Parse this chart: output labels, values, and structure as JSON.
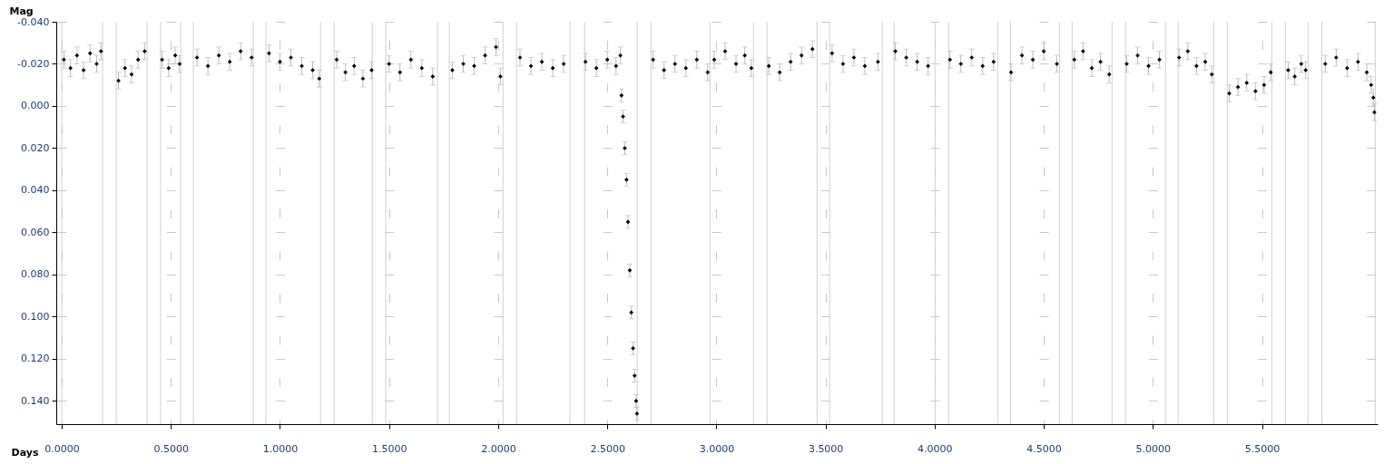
{
  "chart_data": {
    "type": "scatter",
    "xlabel": "Days",
    "ylabel": "Mag",
    "xlim": [
      -0.025,
      6.03
    ],
    "ylim": [
      0.151,
      -0.04
    ],
    "xticks": [
      {
        "value": 0,
        "label": "0.0000"
      },
      {
        "value": 0.5,
        "label": "0.5000"
      },
      {
        "value": 1,
        "label": "1.0000"
      },
      {
        "value": 1.5,
        "label": "1.5000"
      },
      {
        "value": 2,
        "label": "2.0000"
      },
      {
        "value": 2.5,
        "label": "2.5000"
      },
      {
        "value": 3,
        "label": "3.0000"
      },
      {
        "value": 3.5,
        "label": "3.5000"
      },
      {
        "value": 4,
        "label": "4.0000"
      },
      {
        "value": 4.5,
        "label": "4.5000"
      },
      {
        "value": 5,
        "label": "5.0000"
      },
      {
        "value": 5.5,
        "label": "5.5000"
      }
    ],
    "yticks": [
      {
        "value": -0.04,
        "label": "-0.040"
      },
      {
        "value": -0.02,
        "label": "-0.020"
      },
      {
        "value": 0,
        "label": "0.000"
      },
      {
        "value": 0.02,
        "label": "0.020"
      },
      {
        "value": 0.04,
        "label": "0.040"
      },
      {
        "value": 0.06,
        "label": "0.060"
      },
      {
        "value": 0.08,
        "label": "0.080"
      },
      {
        "value": 0.1,
        "label": "0.100"
      },
      {
        "value": 0.12,
        "label": "0.120"
      },
      {
        "value": 0.14,
        "label": "0.140"
      }
    ],
    "grid": true,
    "marker": "diamond",
    "series": [
      {
        "color": "#000000",
        "x": [
          0.01,
          0.04,
          0.07,
          0.1,
          0.13,
          0.16,
          0.18,
          0.26,
          0.29,
          0.32,
          0.35,
          0.38,
          0.46,
          0.49,
          0.52,
          0.54,
          0.62,
          0.67,
          0.72,
          0.77,
          0.82,
          0.87,
          0.95,
          1.0,
          1.05,
          1.1,
          1.15,
          1.18,
          1.26,
          1.3,
          1.34,
          1.38,
          1.42,
          1.5,
          1.55,
          1.6,
          1.65,
          1.7,
          1.79,
          1.84,
          1.89,
          1.94,
          1.99,
          2.01,
          2.1,
          2.15,
          2.2,
          2.25,
          2.3,
          2.4,
          2.45,
          2.5,
          2.54,
          2.56,
          2.565,
          2.572,
          2.58,
          2.588,
          2.595,
          2.603,
          2.61,
          2.618,
          2.625,
          2.632,
          2.636,
          2.71,
          2.76,
          2.81,
          2.86,
          2.91,
          2.96,
          2.99,
          3.04,
          3.09,
          3.13,
          3.16,
          3.24,
          3.29,
          3.34,
          3.39,
          3.44,
          3.53,
          3.58,
          3.63,
          3.68,
          3.74,
          3.82,
          3.87,
          3.92,
          3.97,
          4.07,
          4.12,
          4.17,
          4.22,
          4.27,
          4.35,
          4.4,
          4.45,
          4.5,
          4.56,
          4.64,
          4.68,
          4.72,
          4.76,
          4.8,
          4.88,
          4.93,
          4.98,
          5.03,
          5.12,
          5.16,
          5.2,
          5.24,
          5.27,
          5.35,
          5.39,
          5.43,
          5.47,
          5.51,
          5.54,
          5.62,
          5.65,
          5.68,
          5.7,
          5.79,
          5.84,
          5.89,
          5.94,
          5.98,
          6.0,
          6.01,
          6.015
        ],
        "values": [
          -0.022,
          -0.018,
          -0.024,
          -0.017,
          -0.025,
          -0.02,
          -0.026,
          -0.012,
          -0.018,
          -0.015,
          -0.022,
          -0.026,
          -0.022,
          -0.018,
          -0.024,
          -0.02,
          -0.023,
          -0.019,
          -0.024,
          -0.021,
          -0.026,
          -0.023,
          -0.025,
          -0.021,
          -0.023,
          -0.019,
          -0.017,
          -0.013,
          -0.022,
          -0.016,
          -0.019,
          -0.013,
          -0.017,
          -0.02,
          -0.016,
          -0.022,
          -0.018,
          -0.014,
          -0.017,
          -0.02,
          -0.019,
          -0.024,
          -0.028,
          -0.014,
          -0.023,
          -0.019,
          -0.021,
          -0.018,
          -0.02,
          -0.021,
          -0.018,
          -0.022,
          -0.019,
          -0.024,
          -0.005,
          0.005,
          0.02,
          0.035,
          0.055,
          0.078,
          0.098,
          0.115,
          0.128,
          0.14,
          0.146,
          -0.022,
          -0.017,
          -0.02,
          -0.018,
          -0.022,
          -0.016,
          -0.022,
          -0.026,
          -0.02,
          -0.024,
          -0.018,
          -0.019,
          -0.016,
          -0.021,
          -0.024,
          -0.027,
          -0.025,
          -0.02,
          -0.023,
          -0.019,
          -0.021,
          -0.026,
          -0.023,
          -0.021,
          -0.019,
          -0.022,
          -0.02,
          -0.023,
          -0.019,
          -0.021,
          -0.016,
          -0.024,
          -0.022,
          -0.026,
          -0.02,
          -0.022,
          -0.026,
          -0.018,
          -0.021,
          -0.015,
          -0.02,
          -0.024,
          -0.019,
          -0.022,
          -0.023,
          -0.026,
          -0.019,
          -0.021,
          -0.015,
          -0.006,
          -0.009,
          -0.011,
          -0.007,
          -0.01,
          -0.016,
          -0.017,
          -0.014,
          -0.02,
          -0.017,
          -0.02,
          -0.023,
          -0.018,
          -0.021,
          -0.016,
          -0.01,
          -0.004,
          0.003
        ],
        "errors": [
          0.004,
          0.004,
          0.004,
          0.004,
          0.004,
          0.004,
          0.004,
          0.004,
          0.004,
          0.004,
          0.004,
          0.004,
          0.004,
          0.004,
          0.004,
          0.004,
          0.004,
          0.004,
          0.004,
          0.004,
          0.004,
          0.004,
          0.004,
          0.004,
          0.004,
          0.004,
          0.004,
          0.004,
          0.004,
          0.004,
          0.004,
          0.004,
          0.004,
          0.004,
          0.004,
          0.004,
          0.004,
          0.004,
          0.004,
          0.004,
          0.004,
          0.004,
          0.004,
          0.004,
          0.004,
          0.004,
          0.004,
          0.004,
          0.004,
          0.004,
          0.004,
          0.004,
          0.004,
          0.004,
          0.003,
          0.003,
          0.003,
          0.003,
          0.003,
          0.003,
          0.003,
          0.003,
          0.003,
          0.003,
          0.003,
          0.004,
          0.004,
          0.004,
          0.004,
          0.004,
          0.004,
          0.004,
          0.004,
          0.004,
          0.004,
          0.004,
          0.004,
          0.004,
          0.004,
          0.004,
          0.004,
          0.004,
          0.004,
          0.004,
          0.004,
          0.004,
          0.004,
          0.004,
          0.004,
          0.004,
          0.004,
          0.004,
          0.004,
          0.004,
          0.004,
          0.004,
          0.004,
          0.004,
          0.004,
          0.004,
          0.004,
          0.004,
          0.004,
          0.004,
          0.004,
          0.004,
          0.004,
          0.004,
          0.004,
          0.004,
          0.004,
          0.004,
          0.004,
          0.004,
          0.004,
          0.004,
          0.004,
          0.004,
          0.004,
          0.004,
          0.004,
          0.004,
          0.004,
          0.004,
          0.004,
          0.004,
          0.004,
          0.004,
          0.004,
          0.004,
          0.004,
          0.004
        ]
      }
    ],
    "ref_lines": [
      {
        "axis": "x",
        "value": 0.0
      },
      {
        "axis": "x",
        "value": 0.187
      },
      {
        "axis": "x",
        "value": 0.25
      },
      {
        "axis": "x",
        "value": 0.391
      },
      {
        "axis": "x",
        "value": 0.453
      },
      {
        "axis": "x",
        "value": 0.545
      },
      {
        "axis": "x",
        "value": 0.603
      },
      {
        "axis": "x",
        "value": 0.878
      },
      {
        "axis": "x",
        "value": 0.936
      },
      {
        "axis": "x",
        "value": 1.186
      },
      {
        "axis": "x",
        "value": 1.248
      },
      {
        "axis": "x",
        "value": 1.423
      },
      {
        "axis": "x",
        "value": 1.485
      },
      {
        "axis": "x",
        "value": 1.722
      },
      {
        "axis": "x",
        "value": 1.776
      },
      {
        "axis": "x",
        "value": 2.022
      },
      {
        "axis": "x",
        "value": 2.084
      },
      {
        "axis": "x",
        "value": 2.329
      },
      {
        "axis": "x",
        "value": 2.396
      },
      {
        "axis": "x",
        "value": 2.637
      },
      {
        "axis": "x",
        "value": 2.7
      },
      {
        "axis": "x",
        "value": 2.97
      },
      {
        "axis": "x",
        "value": 3.17
      },
      {
        "axis": "x",
        "value": 3.232
      },
      {
        "axis": "x",
        "value": 3.461
      },
      {
        "axis": "x",
        "value": 3.519
      },
      {
        "axis": "x",
        "value": 3.76
      },
      {
        "axis": "x",
        "value": 3.814
      },
      {
        "axis": "x",
        "value": 4.002
      },
      {
        "axis": "x",
        "value": 4.064
      },
      {
        "axis": "x",
        "value": 4.289
      },
      {
        "axis": "x",
        "value": 4.347
      },
      {
        "axis": "x",
        "value": 4.572
      },
      {
        "axis": "x",
        "value": 4.63
      },
      {
        "axis": "x",
        "value": 4.813
      },
      {
        "axis": "x",
        "value": 4.875
      },
      {
        "axis": "x",
        "value": 5.058
      },
      {
        "axis": "x",
        "value": 5.116
      },
      {
        "axis": "x",
        "value": 5.279
      },
      {
        "axis": "x",
        "value": 5.341
      },
      {
        "axis": "x",
        "value": 5.545
      },
      {
        "axis": "x",
        "value": 5.607
      },
      {
        "axis": "x",
        "value": 5.711
      },
      {
        "axis": "x",
        "value": 5.774
      },
      {
        "axis": "x",
        "value": 6.019
      }
    ]
  }
}
